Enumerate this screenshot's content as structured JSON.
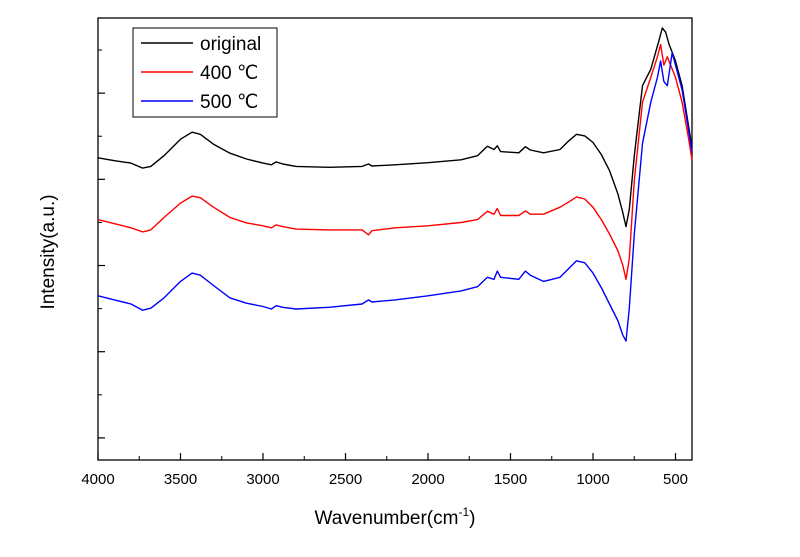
{
  "chart_data": {
    "type": "line",
    "xlabel": "Wavenumber(cm",
    "xlabel_sup": "-1",
    "xlabel_close": ")",
    "ylabel": "Intensity(a.u.)",
    "xlim": [
      4000,
      400
    ],
    "x_reversed": true,
    "ylim": [
      0,
      1
    ],
    "y_tick_labels_shown": false,
    "x_ticks": [
      4000,
      3500,
      3000,
      2500,
      2000,
      1500,
      1000,
      500
    ],
    "x_tick_labels": [
      "4000",
      "3500",
      "3000",
      "2500",
      "2000",
      "1500",
      "1000",
      "500"
    ],
    "grid": false,
    "legend_position": "top-left",
    "series": [
      {
        "name": "original",
        "color": "#000000",
        "x": [
          4000,
          3900,
          3800,
          3730,
          3680,
          3600,
          3500,
          3430,
          3380,
          3300,
          3200,
          3100,
          3000,
          2950,
          2920,
          2880,
          2800,
          2600,
          2400,
          2360,
          2340,
          2200,
          2000,
          1800,
          1700,
          1640,
          1600,
          1580,
          1560,
          1450,
          1410,
          1380,
          1300,
          1200,
          1150,
          1100,
          1050,
          1000,
          950,
          900,
          850,
          820,
          800,
          780,
          750,
          700,
          650,
          600,
          580,
          560,
          540,
          500,
          460,
          420,
          400
        ],
        "y": [
          0.685,
          0.678,
          0.672,
          0.66,
          0.664,
          0.69,
          0.73,
          0.747,
          0.742,
          0.718,
          0.696,
          0.682,
          0.672,
          0.668,
          0.675,
          0.67,
          0.664,
          0.662,
          0.664,
          0.67,
          0.665,
          0.668,
          0.673,
          0.68,
          0.69,
          0.713,
          0.705,
          0.714,
          0.7,
          0.697,
          0.712,
          0.704,
          0.697,
          0.705,
          0.725,
          0.742,
          0.738,
          0.722,
          0.693,
          0.654,
          0.598,
          0.553,
          0.518,
          0.56,
          0.69,
          0.86,
          0.9,
          0.97,
          1.0,
          0.99,
          0.962,
          0.92,
          0.86,
          0.76,
          0.71
        ]
      },
      {
        "name": "400 ℃",
        "color": "#ff0000",
        "x": [
          4000,
          3900,
          3800,
          3730,
          3680,
          3600,
          3500,
          3430,
          3380,
          3300,
          3200,
          3100,
          3000,
          2950,
          2920,
          2880,
          2800,
          2600,
          2400,
          2360,
          2340,
          2200,
          2000,
          1800,
          1700,
          1640,
          1600,
          1580,
          1560,
          1450,
          1410,
          1380,
          1300,
          1200,
          1150,
          1100,
          1050,
          1000,
          950,
          900,
          850,
          820,
          800,
          780,
          750,
          700,
          650,
          610,
          590,
          570,
          550,
          500,
          460,
          420,
          400
        ],
        "y": [
          0.535,
          0.525,
          0.515,
          0.505,
          0.51,
          0.54,
          0.575,
          0.592,
          0.588,
          0.565,
          0.54,
          0.527,
          0.52,
          0.515,
          0.522,
          0.518,
          0.512,
          0.51,
          0.51,
          0.498,
          0.508,
          0.515,
          0.52,
          0.528,
          0.535,
          0.555,
          0.548,
          0.562,
          0.545,
          0.545,
          0.556,
          0.548,
          0.548,
          0.565,
          0.577,
          0.59,
          0.585,
          0.565,
          0.535,
          0.5,
          0.46,
          0.425,
          0.39,
          0.44,
          0.63,
          0.82,
          0.88,
          0.93,
          0.96,
          0.91,
          0.93,
          0.88,
          0.82,
          0.73,
          0.68
        ]
      },
      {
        "name": "500 ℃",
        "color": "#0000ff",
        "x": [
          4000,
          3900,
          3800,
          3730,
          3680,
          3600,
          3500,
          3430,
          3380,
          3300,
          3200,
          3100,
          3000,
          2950,
          2920,
          2880,
          2800,
          2600,
          2400,
          2360,
          2340,
          2200,
          2000,
          1800,
          1700,
          1640,
          1600,
          1580,
          1560,
          1450,
          1410,
          1380,
          1300,
          1200,
          1150,
          1100,
          1050,
          1000,
          950,
          900,
          850,
          820,
          800,
          780,
          750,
          700,
          650,
          610,
          590,
          570,
          550,
          520,
          500,
          460,
          420,
          400
        ],
        "y": [
          0.35,
          0.34,
          0.33,
          0.315,
          0.32,
          0.345,
          0.385,
          0.405,
          0.4,
          0.375,
          0.345,
          0.332,
          0.324,
          0.318,
          0.326,
          0.322,
          0.318,
          0.322,
          0.33,
          0.34,
          0.335,
          0.34,
          0.35,
          0.362,
          0.372,
          0.395,
          0.39,
          0.41,
          0.395,
          0.39,
          0.41,
          0.4,
          0.385,
          0.395,
          0.415,
          0.435,
          0.43,
          0.405,
          0.37,
          0.33,
          0.29,
          0.255,
          0.24,
          0.32,
          0.5,
          0.72,
          0.82,
          0.88,
          0.92,
          0.87,
          0.86,
          0.94,
          0.91,
          0.85,
          0.75,
          0.7
        ]
      }
    ]
  }
}
